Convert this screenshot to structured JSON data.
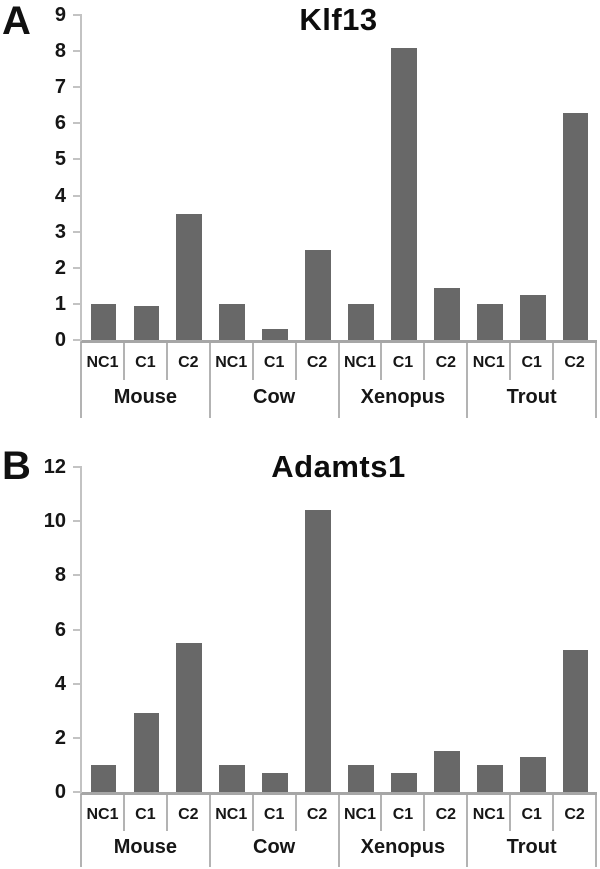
{
  "figure": {
    "background": "#ffffff"
  },
  "colors": {
    "bar": "#686868",
    "axis_line": "#c3c3c3",
    "baseline": "#a6a6a6",
    "separator": "#b3b3b3",
    "text": "#161616"
  },
  "chart_data": [
    {
      "type": "bar",
      "panel_label": "A",
      "title": "Klf13",
      "xlabel": "",
      "ylabel": "",
      "ylim": [
        0,
        9
      ],
      "y_ticks": [
        0,
        1,
        2,
        3,
        4,
        5,
        6,
        7,
        8,
        9
      ],
      "grid": false,
      "legend": false,
      "bar_color": "#686868",
      "bar_labels": [
        "NC1",
        "C1",
        "C2"
      ],
      "groups": [
        {
          "name": "Mouse",
          "values": [
            1.0,
            0.93,
            3.5
          ]
        },
        {
          "name": "Cow",
          "values": [
            1.0,
            0.3,
            2.5
          ]
        },
        {
          "name": "Xenopus",
          "values": [
            1.0,
            8.1,
            1.45
          ]
        },
        {
          "name": "Trout",
          "values": [
            1.0,
            1.25,
            6.3
          ]
        }
      ]
    },
    {
      "type": "bar",
      "panel_label": "B",
      "title": "Adamts1",
      "xlabel": "",
      "ylabel": "",
      "ylim": [
        0,
        12
      ],
      "y_ticks": [
        0,
        2,
        4,
        6,
        8,
        10,
        12
      ],
      "grid": false,
      "legend": false,
      "bar_color": "#686868",
      "bar_labels": [
        "NC1",
        "C1",
        "C2"
      ],
      "groups": [
        {
          "name": "Mouse",
          "values": [
            1.0,
            2.9,
            5.5
          ]
        },
        {
          "name": "Cow",
          "values": [
            1.0,
            0.7,
            10.4
          ]
        },
        {
          "name": "Xenopus",
          "values": [
            1.0,
            0.7,
            1.5
          ]
        },
        {
          "name": "Trout",
          "values": [
            1.0,
            1.3,
            5.25
          ]
        }
      ]
    }
  ]
}
